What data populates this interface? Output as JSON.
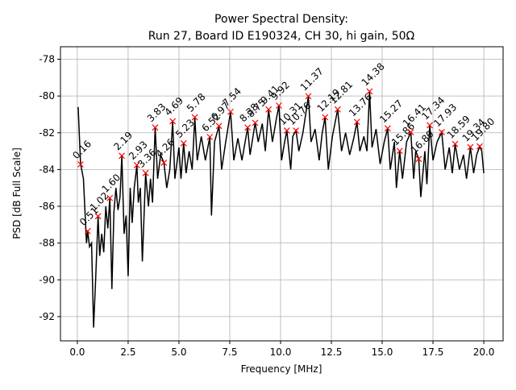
{
  "chart_data": {
    "type": "line",
    "title": "Power Spectral Density:",
    "subtitle": "Run 27, Board ID E190324, CH 30, hi gain, 50Ω",
    "x_label": "Frequency [MHz]",
    "y_label": "PSD [dB Full Scale]",
    "xlim": [
      -0.83,
      20.95
    ],
    "ylim": [
      -93.32,
      -77.32
    ],
    "xticks": [
      {
        "value": 0,
        "label": "0.0"
      },
      {
        "value": 2.5,
        "label": "2.5"
      },
      {
        "value": 5,
        "label": "5.0"
      },
      {
        "value": 7.5,
        "label": "7.5"
      },
      {
        "value": 10,
        "label": "10.0"
      },
      {
        "value": 12.5,
        "label": "12.5"
      },
      {
        "value": 15,
        "label": "15.0"
      },
      {
        "value": 17.5,
        "label": "17.5"
      },
      {
        "value": 20,
        "label": "20.0"
      }
    ],
    "yticks": [
      -92,
      -90,
      -88,
      -86,
      -84,
      -82,
      -80,
      -78
    ],
    "grid": true,
    "series": [
      {
        "style": "line",
        "color": "#000000",
        "x": [
          0.04,
          0.16,
          0.3,
          0.45,
          0.51,
          0.6,
          0.7,
          0.8,
          0.9,
          1.02,
          1.1,
          1.2,
          1.3,
          1.4,
          1.5,
          1.6,
          1.7,
          1.8,
          1.9,
          2.0,
          2.1,
          2.19,
          2.3,
          2.4,
          2.5,
          2.6,
          2.7,
          2.8,
          2.93,
          3.0,
          3.1,
          3.2,
          3.36,
          3.5,
          3.6,
          3.7,
          3.83,
          3.95,
          4.1,
          4.26,
          4.4,
          4.55,
          4.69,
          4.8,
          5.0,
          5.1,
          5.23,
          5.35,
          5.5,
          5.65,
          5.78,
          5.9,
          6.1,
          6.3,
          6.52,
          6.6,
          6.75,
          6.97,
          7.1,
          7.3,
          7.54,
          7.7,
          7.9,
          8.1,
          8.38,
          8.5,
          8.75,
          8.9,
          9.1,
          9.25,
          9.41,
          9.6,
          9.8,
          9.92,
          10.05,
          10.2,
          10.31,
          10.5,
          10.6,
          10.76,
          10.9,
          11.1,
          11.37,
          11.5,
          11.7,
          11.9,
          12.05,
          12.19,
          12.35,
          12.55,
          12.81,
          13.0,
          13.2,
          13.4,
          13.6,
          13.76,
          13.9,
          14.1,
          14.25,
          14.38,
          14.5,
          14.7,
          14.9,
          15.1,
          15.27,
          15.4,
          15.6,
          15.7,
          15.86,
          16.0,
          16.2,
          16.41,
          16.55,
          16.65,
          16.8,
          16.9,
          17.1,
          17.2,
          17.34,
          17.5,
          17.7,
          17.93,
          18.1,
          18.3,
          18.45,
          18.59,
          18.8,
          19.0,
          19.15,
          19.34,
          19.5,
          19.65,
          19.8,
          19.9,
          20.0
        ],
        "values": [
          -80.6,
          -83.7,
          -84.5,
          -88,
          -87.35,
          -88.2,
          -88,
          -92.6,
          -90,
          -86.54,
          -88.7,
          -87.5,
          -88.5,
          -86,
          -87.2,
          -85.55,
          -90.5,
          -86.3,
          -85,
          -86.2,
          -85.5,
          -83.25,
          -87.5,
          -86.5,
          -89.8,
          -85,
          -86.9,
          -85,
          -83.76,
          -85.8,
          -85,
          -89,
          -84.19,
          -86,
          -84.5,
          -85.8,
          -81.71,
          -84.5,
          -83.2,
          -83.63,
          -85,
          -84,
          -81.37,
          -84.5,
          -82.8,
          -84.5,
          -82.57,
          -84.2,
          -83,
          -84,
          -81.16,
          -83.5,
          -82.2,
          -83.5,
          -82.23,
          -86.5,
          -82.5,
          -81.63,
          -84,
          -82.5,
          -80.86,
          -83.5,
          -82.3,
          -83.5,
          -81.71,
          -83.2,
          -81.46,
          -82.5,
          -81.5,
          -83,
          -80.73,
          -82.5,
          -81.2,
          -80.52,
          -83.5,
          -82.5,
          -81.88,
          -84,
          -82.2,
          -81.88,
          -83,
          -82,
          -80.01,
          -82.5,
          -81.8,
          -83.5,
          -82,
          -81.16,
          -84,
          -82.2,
          -80.73,
          -83,
          -82,
          -83.2,
          -82.3,
          -81.41,
          -83,
          -82.2,
          -83,
          -79.75,
          -82.8,
          -81.8,
          -83.7,
          -82.5,
          -81.76,
          -84,
          -82.5,
          -85,
          -82.99,
          -84.5,
          -82.5,
          -81.97,
          -84.5,
          -83,
          -83.42,
          -85.5,
          -83,
          -84.8,
          -81.59,
          -83.5,
          -82.5,
          -81.97,
          -84,
          -82.8,
          -84.2,
          -82.61,
          -84,
          -83.2,
          -84.5,
          -82.78,
          -84.2,
          -83.2,
          -82.74,
          -83,
          -84.2
        ]
      },
      {
        "style": "marker",
        "color": "#ff0000",
        "x": [
          0.16,
          0.51,
          1.02,
          1.6,
          2.19,
          2.93,
          3.36,
          3.83,
          4.26,
          4.69,
          5.23,
          5.78,
          6.52,
          6.97,
          7.54,
          8.38,
          8.75,
          9.41,
          9.92,
          10.31,
          10.76,
          11.37,
          12.19,
          12.81,
          13.76,
          14.38,
          15.27,
          15.86,
          16.41,
          16.8,
          17.34,
          17.93,
          18.59,
          19.34,
          19.8
        ],
        "values": [
          -83.72,
          -87.35,
          -86.54,
          -85.55,
          -83.25,
          -83.76,
          -84.19,
          -81.71,
          -83.63,
          -81.37,
          -82.57,
          -81.16,
          -82.23,
          -81.63,
          -80.86,
          -81.71,
          -81.46,
          -80.73,
          -80.52,
          -81.88,
          -81.88,
          -80.01,
          -81.16,
          -80.73,
          -81.41,
          -79.75,
          -81.76,
          -82.99,
          -81.97,
          -83.42,
          -81.59,
          -81.97,
          -82.61,
          -82.78,
          -82.74
        ],
        "labels": [
          "0.16",
          "0.51",
          "1.02",
          "1.60",
          "2.19",
          "2.93",
          "3.36",
          "3.83",
          "4.26",
          "4.69",
          "5.23",
          "5.78",
          "6.52",
          "6.97",
          "7.54",
          "8.38",
          "8.75",
          "9.41",
          "9.92",
          "10.31",
          "10.76",
          "11.37",
          "12.19",
          "12.81",
          "13.76",
          "14.38",
          "15.27",
          "15.86",
          "16.41",
          "16.80",
          "17.34",
          "17.93",
          "18.59",
          "19.34",
          "19.80"
        ]
      }
    ]
  }
}
